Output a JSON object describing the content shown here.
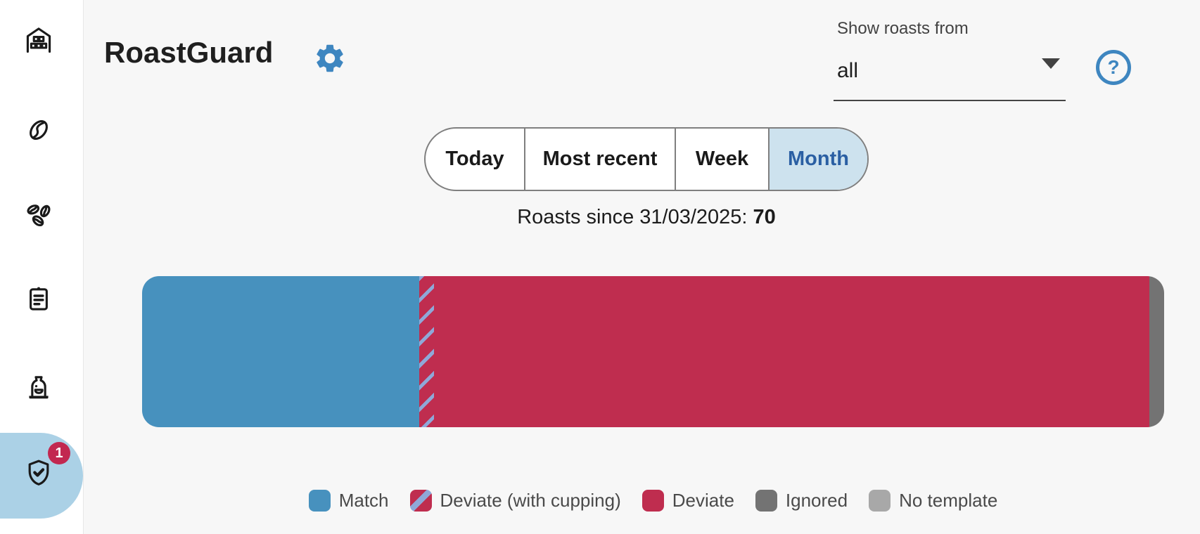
{
  "app": {
    "title": "RoastGuard"
  },
  "colors": {
    "accent_blue": "#3e86c0",
    "match_blue": "#4791be",
    "deviate_red": "#bf2d4f",
    "stripe_blue": "#8fa8d8",
    "ignored_gray": "#737373",
    "no_template_gray": "#a8a8a8",
    "tab_selected_bg": "#cde2ee",
    "tab_selected_text": "#2a5fa3",
    "sidebar_selected_bg": "#abd1e6",
    "badge_bg": "#c22850"
  },
  "sidebar": {
    "items": [
      {
        "name": "warehouse",
        "icon": "warehouse-icon",
        "selected": false
      },
      {
        "name": "coffee-bean",
        "icon": "coffee-bean-icon",
        "selected": false
      },
      {
        "name": "green-beans",
        "icon": "coffee-beans-icon",
        "selected": false
      },
      {
        "name": "roast-log",
        "icon": "clipboard-icon",
        "selected": false
      },
      {
        "name": "roaster",
        "icon": "roaster-icon",
        "selected": false
      },
      {
        "name": "roastguard",
        "icon": "shield-check-icon",
        "selected": true,
        "badge": "1"
      }
    ]
  },
  "header": {
    "filter_label": "Show roasts from",
    "filter_value": "all",
    "help_glyph": "?"
  },
  "tabs": {
    "options": [
      {
        "label": "Today",
        "selected": false
      },
      {
        "label": "Most recent",
        "selected": false
      },
      {
        "label": "Week",
        "selected": false
      },
      {
        "label": "Month",
        "selected": true
      }
    ]
  },
  "summary": {
    "prefix": "Roasts since 31/03/2025: ",
    "count": "70"
  },
  "chart_data": {
    "type": "bar",
    "variant": "horizontal-stacked-single-row",
    "title": "Roasts since 31/03/2025: 70",
    "total_roasts": 70,
    "series": [
      {
        "name": "Match",
        "value": 19,
        "color": "#4791be"
      },
      {
        "name": "Deviate (with cupping)",
        "value": 1,
        "color": "#bf2d4f",
        "pattern": "diagonal-stripes",
        "stripe_color": "#8fa8d8"
      },
      {
        "name": "Deviate",
        "value": 49,
        "color": "#bf2d4f"
      },
      {
        "name": "Ignored",
        "value": 1,
        "color": "#737373"
      },
      {
        "name": "No template",
        "value": 0,
        "color": "#a8a8a8"
      }
    ],
    "axes": "none",
    "grid": false,
    "legend_position": "bottom"
  }
}
